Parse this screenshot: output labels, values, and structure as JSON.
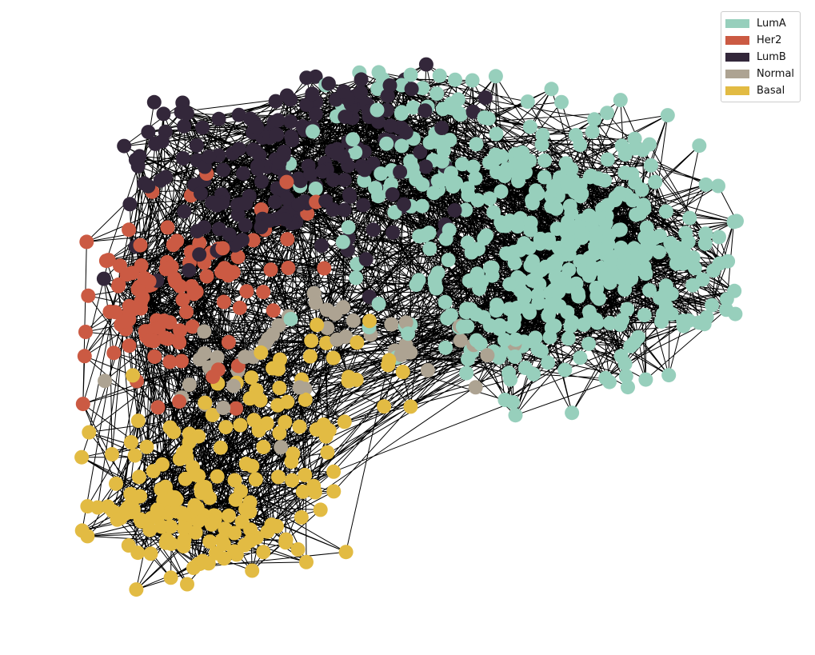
{
  "chart_data": {
    "type": "network",
    "legend": {
      "placement": "top-right",
      "items": [
        {
          "label": "LumA",
          "color": "#97cfbc"
        },
        {
          "label": "Her2",
          "color": "#cb5a43"
        },
        {
          "label": "LumB",
          "color": "#33273a"
        },
        {
          "label": "Normal",
          "color": "#ada392"
        },
        {
          "label": "Basal",
          "color": "#e2bb43"
        }
      ]
    },
    "edge_color": "#000000",
    "approx_node_counts": {
      "LumA": 480,
      "Her2": 110,
      "LumB": 200,
      "Normal": 45,
      "Basal": 190
    }
  }
}
